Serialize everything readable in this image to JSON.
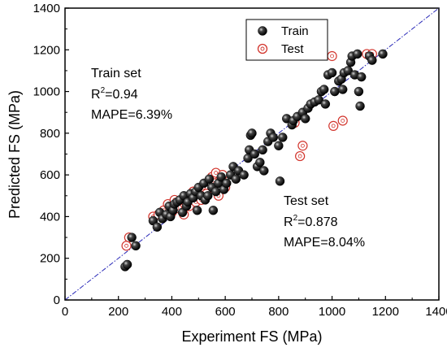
{
  "chart_data": {
    "type": "scatter",
    "xlabel": "Experiment FS (MPa)",
    "ylabel": "Predicted FS (MPa)",
    "xlim": [
      0,
      1400
    ],
    "ylim": [
      0,
      1400
    ],
    "xticks": [
      "0",
      "200",
      "400",
      "600",
      "800",
      "1000",
      "1200",
      "1400"
    ],
    "yticks": [
      "0",
      "200",
      "400",
      "600",
      "800",
      "1000",
      "1200",
      "1400"
    ],
    "grid": false,
    "legend_position": "top-center",
    "reference_line": {
      "from": [
        0,
        0
      ],
      "to": [
        1400,
        1400
      ],
      "style": "dash-dot",
      "color": "#2a2ab8"
    },
    "annotations": {
      "train": {
        "heading": "Train set",
        "r2_label": "R",
        "r2_value": "=0.94",
        "mape": "MAPE=6.39%"
      },
      "test": {
        "heading": "Test set",
        "r2_label": "R",
        "r2_value": "=0.878",
        "mape": "MAPE=8.04%"
      }
    },
    "series": [
      {
        "name": "Train",
        "marker": "filled-black-sphere",
        "points": [
          [
            225,
            160
          ],
          [
            233,
            170
          ],
          [
            250,
            300
          ],
          [
            265,
            260
          ],
          [
            330,
            380
          ],
          [
            345,
            350
          ],
          [
            355,
            420
          ],
          [
            365,
            390
          ],
          [
            380,
            410
          ],
          [
            390,
            450
          ],
          [
            395,
            400
          ],
          [
            405,
            430
          ],
          [
            410,
            460
          ],
          [
            420,
            470
          ],
          [
            430,
            480
          ],
          [
            440,
            420
          ],
          [
            445,
            500
          ],
          [
            455,
            450
          ],
          [
            460,
            470
          ],
          [
            470,
            510
          ],
          [
            480,
            490
          ],
          [
            490,
            520
          ],
          [
            495,
            430
          ],
          [
            500,
            540
          ],
          [
            510,
            500
          ],
          [
            520,
            560
          ],
          [
            525,
            480
          ],
          [
            535,
            500
          ],
          [
            540,
            580
          ],
          [
            550,
            540
          ],
          [
            555,
            430
          ],
          [
            565,
            520
          ],
          [
            575,
            560
          ],
          [
            585,
            590
          ],
          [
            595,
            530
          ],
          [
            605,
            560
          ],
          [
            620,
            600
          ],
          [
            630,
            640
          ],
          [
            640,
            580
          ],
          [
            650,
            620
          ],
          [
            670,
            600
          ],
          [
            685,
            680
          ],
          [
            690,
            720
          ],
          [
            695,
            790
          ],
          [
            700,
            800
          ],
          [
            710,
            700
          ],
          [
            720,
            640
          ],
          [
            730,
            660
          ],
          [
            740,
            720
          ],
          [
            745,
            620
          ],
          [
            760,
            760
          ],
          [
            770,
            800
          ],
          [
            780,
            780
          ],
          [
            800,
            740
          ],
          [
            805,
            570
          ],
          [
            815,
            780
          ],
          [
            830,
            870
          ],
          [
            850,
            840
          ],
          [
            855,
            860
          ],
          [
            870,
            880
          ],
          [
            890,
            900
          ],
          [
            900,
            870
          ],
          [
            910,
            920
          ],
          [
            920,
            940
          ],
          [
            935,
            950
          ],
          [
            950,
            960
          ],
          [
            960,
            1000
          ],
          [
            970,
            1010
          ],
          [
            975,
            940
          ],
          [
            985,
            1080
          ],
          [
            1000,
            1090
          ],
          [
            1010,
            1000
          ],
          [
            1025,
            1050
          ],
          [
            1035,
            1060
          ],
          [
            1045,
            1090
          ],
          [
            1060,
            1100
          ],
          [
            1070,
            1140
          ],
          [
            1075,
            1170
          ],
          [
            1085,
            1080
          ],
          [
            1095,
            1180
          ],
          [
            1100,
            1000
          ],
          [
            1105,
            930
          ],
          [
            1110,
            1070
          ],
          [
            1140,
            1170
          ],
          [
            1150,
            1150
          ],
          [
            1190,
            1180
          ],
          [
            1040,
            1010
          ]
        ]
      },
      {
        "name": "Test",
        "marker": "open-red-circle",
        "points": [
          [
            230,
            260
          ],
          [
            240,
            300
          ],
          [
            330,
            400
          ],
          [
            350,
            410
          ],
          [
            370,
            430
          ],
          [
            385,
            460
          ],
          [
            400,
            420
          ],
          [
            410,
            480
          ],
          [
            420,
            440
          ],
          [
            435,
            480
          ],
          [
            445,
            410
          ],
          [
            455,
            490
          ],
          [
            465,
            450
          ],
          [
            480,
            520
          ],
          [
            490,
            470
          ],
          [
            500,
            500
          ],
          [
            510,
            480
          ],
          [
            520,
            540
          ],
          [
            530,
            510
          ],
          [
            540,
            570
          ],
          [
            550,
            590
          ],
          [
            560,
            560
          ],
          [
            565,
            610
          ],
          [
            575,
            500
          ],
          [
            590,
            600
          ],
          [
            600,
            540
          ],
          [
            860,
            850
          ],
          [
            880,
            690
          ],
          [
            890,
            740
          ],
          [
            1000,
            1170
          ],
          [
            1005,
            835
          ],
          [
            1040,
            860
          ],
          [
            1130,
            1180
          ],
          [
            1150,
            1180
          ]
        ]
      }
    ]
  }
}
